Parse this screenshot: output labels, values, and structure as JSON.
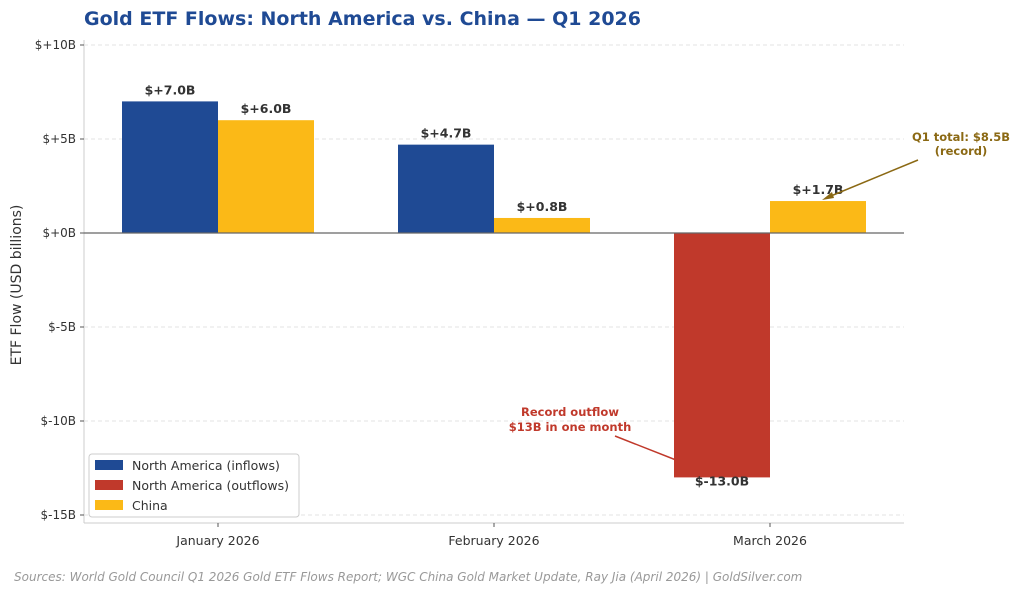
{
  "chart_data": {
    "type": "bar",
    "title": "Gold ETF Flows: North America vs. China — Q1 2026",
    "ylabel": "ETF Flow (USD billions)",
    "xlabel": "",
    "categories": [
      "January 2026",
      "February 2026",
      "March 2026"
    ],
    "ylim": [
      -15.5,
      10
    ],
    "yticks": [
      10,
      5,
      0,
      -5,
      -10,
      -15
    ],
    "ytick_labels": [
      "$+10B",
      "$+5B",
      "$+0B",
      "$-5B",
      "$-10B",
      "$-15B"
    ],
    "grid": true,
    "series": [
      {
        "name": "North America",
        "values": [
          7.0,
          4.7,
          -13.0
        ],
        "labels": [
          "$+7.0B",
          "$+4.7B",
          "$-13.0B"
        ]
      },
      {
        "name": "China",
        "values": [
          6.0,
          0.8,
          1.7
        ],
        "labels": [
          "$+6.0B",
          "$+0.8B",
          "$+1.7B"
        ]
      }
    ],
    "legend": {
      "position": "bottom-left",
      "entries": [
        {
          "label": "North America (inflows)",
          "color": "#1f4a94"
        },
        {
          "label": "North America (outflows)",
          "color": "#c0392b"
        },
        {
          "label": "China",
          "color": "#fbb917"
        }
      ]
    },
    "annotations": [
      {
        "text": [
          "Record outflow",
          "$13B in one month"
        ],
        "color": "#c0392b",
        "target": "March 2026 North America"
      },
      {
        "text": [
          "Q1 total: $8.5B",
          "(record)"
        ],
        "color": "#8b6914",
        "target": "March 2026 China"
      }
    ],
    "colors": {
      "inflow": "#1f4a94",
      "outflow": "#c0392b",
      "china": "#fbb917",
      "title": "#1f4a94"
    }
  },
  "source": "Sources: World Gold Council Q1 2026 Gold ETF Flows Report; WGC China Gold Market Update, Ray Jia (April 2026) | GoldSilver.com"
}
